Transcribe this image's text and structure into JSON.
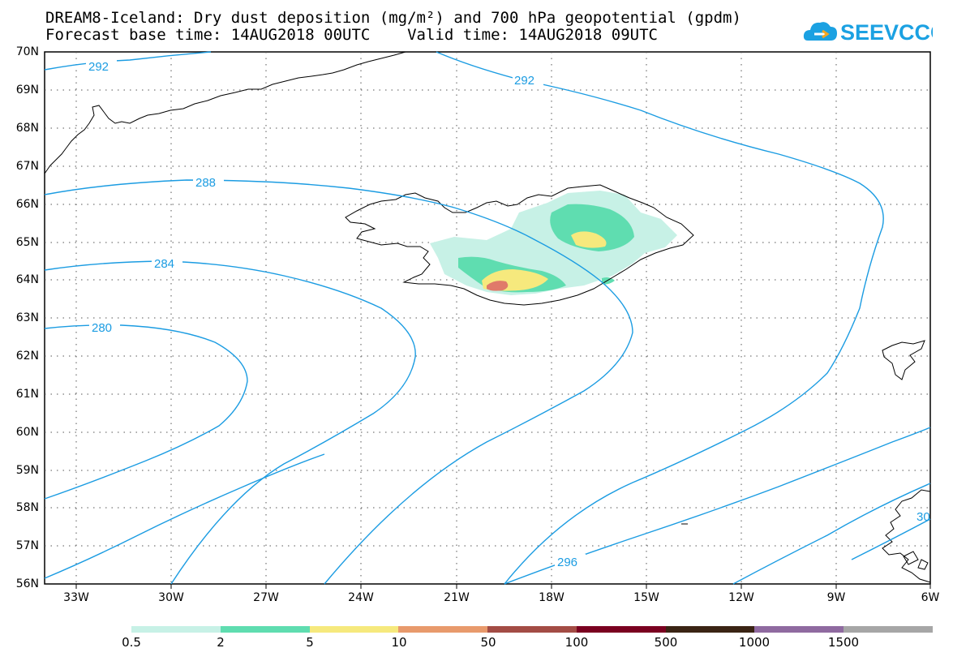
{
  "header": {
    "title_line1": "DREAM8-Iceland: Dry dust deposition (mg/m²) and 700 hPa geopotential (gpdm)",
    "title_line2": "Forecast base time: 14AUG2018 00UTC    Valid time: 14AUG2018 09UTC"
  },
  "logo": {
    "text": "SEEVCCC",
    "color": "#1ba1e2",
    "icon": "cloud-icon"
  },
  "map": {
    "lat_labels": [
      "70N",
      "69N",
      "68N",
      "67N",
      "66N",
      "65N",
      "64N",
      "63N",
      "62N",
      "61N",
      "60N",
      "59N",
      "58N",
      "57N",
      "56N"
    ],
    "lon_labels": [
      "33W",
      "30W",
      "27W",
      "24W",
      "21W",
      "18W",
      "15W",
      "12W",
      "9W",
      "6W"
    ],
    "contour_color": "#1b9ce2",
    "contour_labels": [
      "292",
      "292",
      "288",
      "284",
      "280",
      "296",
      "30"
    ]
  },
  "colorbar": {
    "colors": [
      "#c7f1e6",
      "#5fddb0",
      "#f6e97d",
      "#e89a6c",
      "#a34c45",
      "#7a0020",
      "#3a2414",
      "#8f6aa0",
      "#a6a6a6"
    ],
    "labels": [
      "0.5",
      "2",
      "5",
      "10",
      "50",
      "100",
      "500",
      "1000",
      "1500"
    ]
  }
}
